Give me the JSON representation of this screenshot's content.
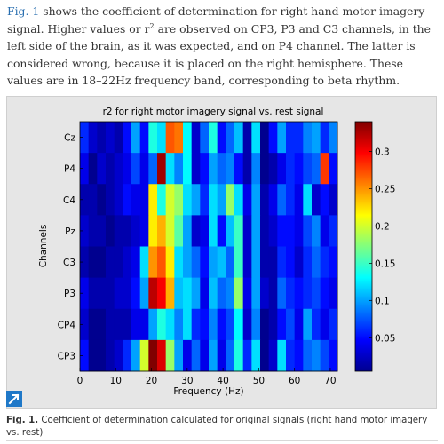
{
  "paragraph": {
    "link": "Fig. 1",
    "text1": " shows the coefficient of determination for right hand motor imagery signal. Higher values or r",
    "sup": "2",
    "text2": " are observed on CP3, P3 and C3 channels, in the left side of the brain, as it was expected, and on P4 channel. The latter is considered wrong, because it is placed on the right hemisphere. These values are in 18–22Hz frequency band, corresponding to beta rhythm."
  },
  "caption": {
    "label": "Fig. 1.",
    "text": " Coefficient of determination calculated for original signals (right hand motor imagery vs. rest)"
  },
  "icons": {
    "expand": "expand-arrow-icon"
  },
  "chart_data": {
    "type": "heatmap",
    "title": "r2  for right motor imagery signal vs. rest signal",
    "xlabel": "Frequency (Hz)",
    "ylabel": "Channels",
    "xlim": [
      0,
      72
    ],
    "xticks": [
      "0",
      "10",
      "20",
      "30",
      "40",
      "50",
      "60",
      "70"
    ],
    "y_categories": [
      "Cz",
      "P4",
      "C4",
      "Pz",
      "C3",
      "P3",
      "CP4",
      "CP3"
    ],
    "x_bins": [
      0,
      2.4,
      4.8,
      7.2,
      9.6,
      12,
      14.4,
      16.8,
      19.2,
      21.6,
      24,
      26.4,
      28.8,
      31.2,
      33.6,
      36,
      38.4,
      40.8,
      43.2,
      45.6,
      48,
      50.4,
      52.8,
      55.2,
      57.6,
      60,
      62.4,
      64.8,
      67.2,
      69.6
    ],
    "values": [
      [
        0.06,
        0.03,
        0.02,
        0.03,
        0.02,
        0.05,
        0.1,
        0.05,
        0.14,
        0.12,
        0.27,
        0.26,
        0.13,
        0.03,
        0.08,
        0.14,
        0.05,
        0.08,
        0.11,
        0.02,
        0.12,
        0.01,
        0.05,
        0.1,
        0.06,
        0.06,
        0.09,
        0.1,
        0.06,
        0.09
      ],
      [
        0.04,
        0.01,
        0.03,
        0.02,
        0.03,
        0.04,
        0.07,
        0.04,
        0.08,
        0.33,
        0.12,
        0.09,
        0.13,
        0.03,
        0.05,
        0.1,
        0.08,
        0.09,
        0.05,
        0.02,
        0.09,
        0.01,
        0.02,
        0.04,
        0.06,
        0.05,
        0.07,
        0.08,
        0.28,
        0.05
      ],
      [
        0.02,
        0.02,
        0.01,
        0.02,
        0.03,
        0.05,
        0.04,
        0.04,
        0.22,
        0.14,
        0.2,
        0.18,
        0.12,
        0.1,
        0.06,
        0.12,
        0.1,
        0.18,
        0.12,
        0.04,
        0.1,
        0.02,
        0.04,
        0.08,
        0.06,
        0.04,
        0.12,
        0.03,
        0.05,
        0.03
      ],
      [
        0.03,
        0.02,
        0.02,
        0.01,
        0.02,
        0.02,
        0.03,
        0.04,
        0.22,
        0.24,
        0.2,
        0.16,
        0.1,
        0.03,
        0.04,
        0.12,
        0.05,
        0.11,
        0.15,
        0.03,
        0.1,
        0.02,
        0.03,
        0.05,
        0.05,
        0.04,
        0.07,
        0.09,
        0.04,
        0.06
      ],
      [
        0.02,
        0.01,
        0.01,
        0.02,
        0.02,
        0.03,
        0.04,
        0.12,
        0.25,
        0.27,
        0.22,
        0.12,
        0.1,
        0.08,
        0.05,
        0.1,
        0.11,
        0.08,
        0.15,
        0.03,
        0.1,
        0.02,
        0.02,
        0.06,
        0.05,
        0.03,
        0.06,
        0.08,
        0.06,
        0.05
      ],
      [
        0.04,
        0.02,
        0.02,
        0.02,
        0.03,
        0.03,
        0.05,
        0.1,
        0.32,
        0.3,
        0.24,
        0.11,
        0.12,
        0.1,
        0.04,
        0.11,
        0.08,
        0.09,
        0.18,
        0.04,
        0.1,
        0.03,
        0.02,
        0.08,
        0.06,
        0.05,
        0.06,
        0.07,
        0.05,
        0.04
      ],
      [
        0.03,
        0.01,
        0.01,
        0.02,
        0.02,
        0.02,
        0.04,
        0.04,
        0.1,
        0.14,
        0.12,
        0.09,
        0.12,
        0.06,
        0.05,
        0.09,
        0.05,
        0.07,
        0.13,
        0.03,
        0.09,
        0.01,
        0.02,
        0.05,
        0.07,
        0.04,
        0.1,
        0.06,
        0.04,
        0.06
      ],
      [
        0.05,
        0.01,
        0.01,
        0.02,
        0.03,
        0.06,
        0.1,
        0.2,
        0.34,
        0.31,
        0.18,
        0.1,
        0.04,
        0.08,
        0.04,
        0.1,
        0.04,
        0.08,
        0.14,
        0.06,
        0.12,
        0.01,
        0.03,
        0.12,
        0.06,
        0.05,
        0.08,
        0.09,
        0.07,
        0.05
      ]
    ],
    "colorbar": {
      "range": [
        0.005,
        0.34
      ],
      "ticks": [
        "0.05",
        "0.1",
        "0.15",
        "0.2",
        "0.25",
        "0.3"
      ],
      "colormap": "jet"
    }
  }
}
